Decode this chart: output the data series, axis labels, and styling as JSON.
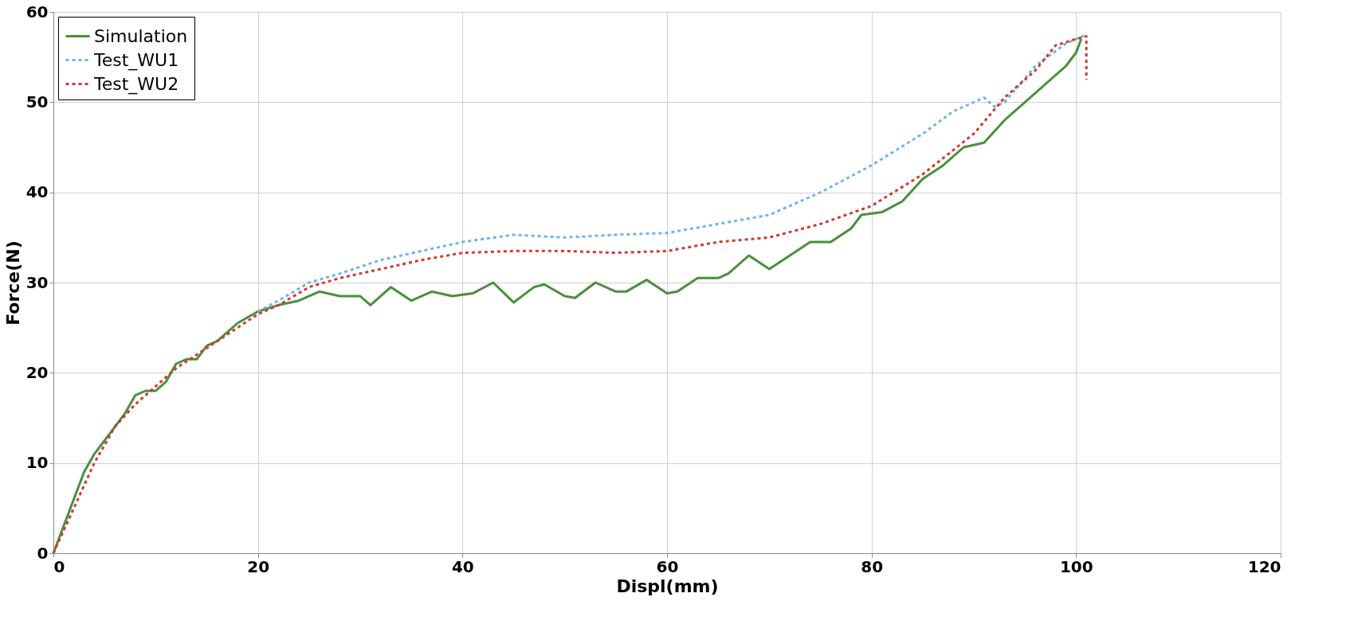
{
  "chart_data": {
    "type": "line",
    "xlabel": "Displ(mm)",
    "ylabel": "Force(N)",
    "xlim": [
      0,
      120
    ],
    "xticks": [
      0,
      20,
      40,
      60,
      80,
      100,
      120
    ],
    "ylim": [
      0,
      60
    ],
    "yticks": [
      0,
      10,
      20,
      30,
      40,
      50,
      60
    ],
    "grid": true,
    "legend": "top left",
    "series": [
      {
        "name": "Simulation",
        "color": "#4a8f3c",
        "line_style": "solid",
        "x": [
          0,
          1,
          2,
          3,
          4,
          5,
          6,
          7,
          8,
          9,
          10,
          11,
          12,
          13,
          14,
          15,
          16,
          17,
          18,
          20,
          22,
          24,
          26,
          28,
          30,
          31,
          33,
          35,
          37,
          39,
          41,
          43,
          45,
          47,
          48,
          50,
          51,
          53,
          55,
          56,
          58,
          60,
          61,
          63,
          65,
          66,
          68,
          70,
          72,
          74,
          76,
          78,
          79,
          81,
          83,
          85,
          87,
          89,
          91,
          93,
          95,
          97,
          99,
          100,
          100.5
        ],
        "values": [
          0,
          3,
          6,
          9,
          11,
          12.5,
          14,
          15.5,
          17.5,
          18,
          18,
          19,
          21,
          21.5,
          21.5,
          23,
          23.5,
          24.5,
          25.5,
          26.8,
          27.5,
          28,
          29,
          28.5,
          28.5,
          27.5,
          29.5,
          28,
          29,
          28.5,
          28.8,
          30,
          27.8,
          29.5,
          29.8,
          28.5,
          28.3,
          30,
          29,
          29,
          30.3,
          28.8,
          29,
          30.5,
          30.5,
          31,
          33,
          31.5,
          33,
          34.5,
          34.5,
          36,
          37.5,
          37.8,
          39,
          41.5,
          43,
          45,
          45.5,
          48,
          50,
          52,
          54,
          55.5,
          57
        ]
      },
      {
        "name": "Test_WU1",
        "color": "#6db3ef",
        "line_style": "dotted",
        "x": [
          20,
          22,
          25,
          28,
          32,
          36,
          40,
          45,
          50,
          55,
          60,
          65,
          70,
          75,
          80,
          85,
          88,
          91,
          92,
          93,
          96,
          99,
          101
        ],
        "values": [
          26.8,
          28,
          30,
          31,
          32.5,
          33.5,
          34.5,
          35.3,
          35,
          35.3,
          35.5,
          36.5,
          37.5,
          40,
          43,
          46.5,
          49,
          50.5,
          49.5,
          50,
          54,
          56.5,
          57.5
        ]
      },
      {
        "name": "Test_WU2",
        "color": "#d03a34",
        "line_style": "dotted",
        "x": [
          0,
          2,
          4,
          6,
          8,
          10,
          12,
          14,
          16,
          18,
          20,
          22,
          25,
          28,
          32,
          36,
          40,
          45,
          50,
          55,
          60,
          65,
          70,
          75,
          80,
          85,
          90,
          93,
          96,
          98,
          100,
          101,
          101,
          101
        ],
        "values": [
          0,
          5,
          10,
          14,
          16.5,
          18.5,
          20.5,
          22,
          23.5,
          25,
          26.5,
          27.5,
          29.5,
          30.5,
          31.5,
          32.5,
          33.3,
          33.5,
          33.5,
          33.3,
          33.5,
          34.5,
          35,
          36.5,
          38.5,
          42,
          46.5,
          50.5,
          53.5,
          56.3,
          57,
          57.3,
          55,
          52.5
        ]
      }
    ]
  }
}
